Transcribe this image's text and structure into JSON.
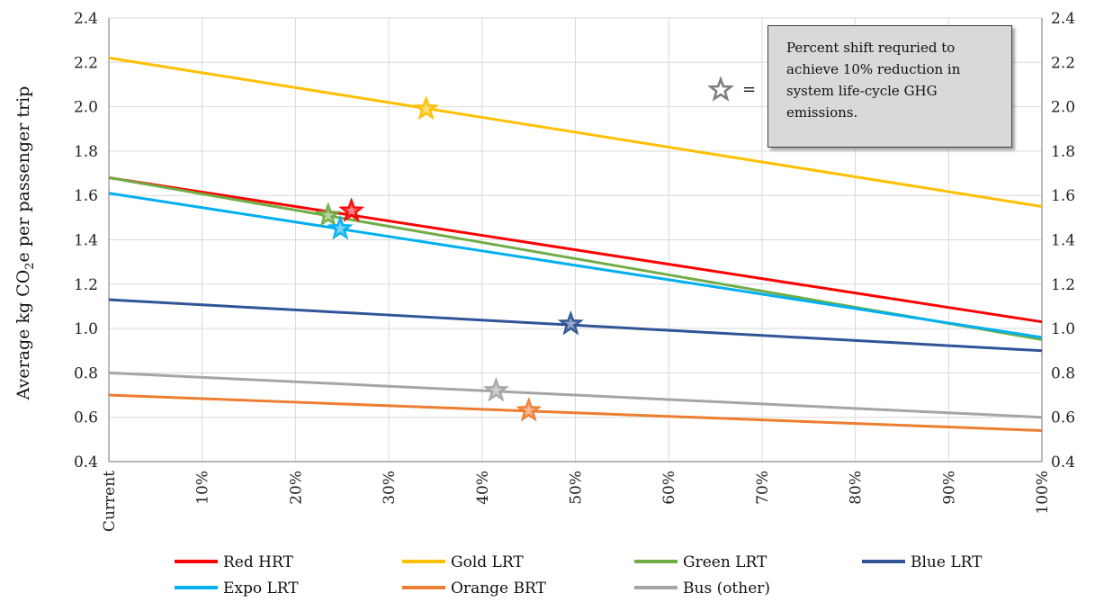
{
  "chart_data": {
    "type": "line",
    "ylabel_pre": "Average kg CO",
    "ylabel_sub": "2",
    "ylabel_post": "e per passenger trip",
    "x": [
      "Current",
      "10%",
      "20%",
      "30%",
      "40%",
      "50%",
      "60%",
      "70%",
      "80%",
      "90%",
      "100%"
    ],
    "x_numeric": [
      0,
      10,
      20,
      30,
      40,
      50,
      60,
      70,
      80,
      90,
      100
    ],
    "ylim": [
      0.4,
      2.4
    ],
    "yticks": [
      0.4,
      0.6,
      0.8,
      1.0,
      1.2,
      1.4,
      1.6,
      1.8,
      2.0,
      2.2,
      2.4
    ],
    "ytick_labels": [
      "0.4",
      "0.6",
      "0.8",
      "1.0",
      "1.2",
      "1.4",
      "1.6",
      "1.8",
      "2.0",
      "2.2",
      "2.4"
    ],
    "grid": true,
    "secondary_y_axis": true,
    "legend_position": "bottom",
    "series": [
      {
        "name": "Red HRT",
        "color": "#ff0000",
        "values": [
          1.68,
          1.615,
          1.55,
          1.485,
          1.42,
          1.355,
          1.29,
          1.225,
          1.16,
          1.095,
          1.03
        ],
        "marker": {
          "x": 26,
          "y": 1.53
        }
      },
      {
        "name": "Gold LRT",
        "color": "#ffc000",
        "values": [
          2.22,
          2.153,
          2.086,
          2.019,
          1.952,
          1.885,
          1.818,
          1.751,
          1.684,
          1.617,
          1.55
        ],
        "marker": {
          "x": 34,
          "y": 1.99
        }
      },
      {
        "name": "Green LRT",
        "color": "#70ad47",
        "values": [
          1.68,
          1.607,
          1.534,
          1.461,
          1.388,
          1.315,
          1.242,
          1.169,
          1.096,
          1.023,
          0.95
        ],
        "marker": {
          "x": 23.5,
          "y": 1.51
        }
      },
      {
        "name": "Blue LRT",
        "color": "#2f5597",
        "values": [
          1.13,
          1.107,
          1.084,
          1.061,
          1.038,
          1.015,
          0.992,
          0.969,
          0.946,
          0.923,
          0.9
        ],
        "marker": {
          "x": 49.5,
          "y": 1.02
        }
      },
      {
        "name": "Expo LRT",
        "color": "#00b0f0",
        "values": [
          1.61,
          1.545,
          1.48,
          1.415,
          1.35,
          1.285,
          1.22,
          1.155,
          1.09,
          1.025,
          0.96
        ],
        "marker": {
          "x": 24.8,
          "y": 1.45
        }
      },
      {
        "name": "Orange BRT",
        "color": "#ed7d31",
        "values": [
          0.7,
          0.684,
          0.668,
          0.652,
          0.636,
          0.62,
          0.604,
          0.588,
          0.572,
          0.556,
          0.54
        ],
        "marker": {
          "x": 45,
          "y": 0.63
        }
      },
      {
        "name": "Bus (other)",
        "color": "#a5a5a5",
        "values": [
          0.8,
          0.78,
          0.76,
          0.74,
          0.72,
          0.7,
          0.68,
          0.66,
          0.64,
          0.62,
          0.6
        ],
        "marker": {
          "x": 41.5,
          "y": 0.72
        }
      }
    ],
    "annotation": {
      "lines": [
        "Percent shift requried to",
        "achieve 10% reduction in",
        "system life-cycle GHG",
        "emissions."
      ],
      "key_symbol": "=",
      "key_color": "#7f7f7f"
    }
  }
}
